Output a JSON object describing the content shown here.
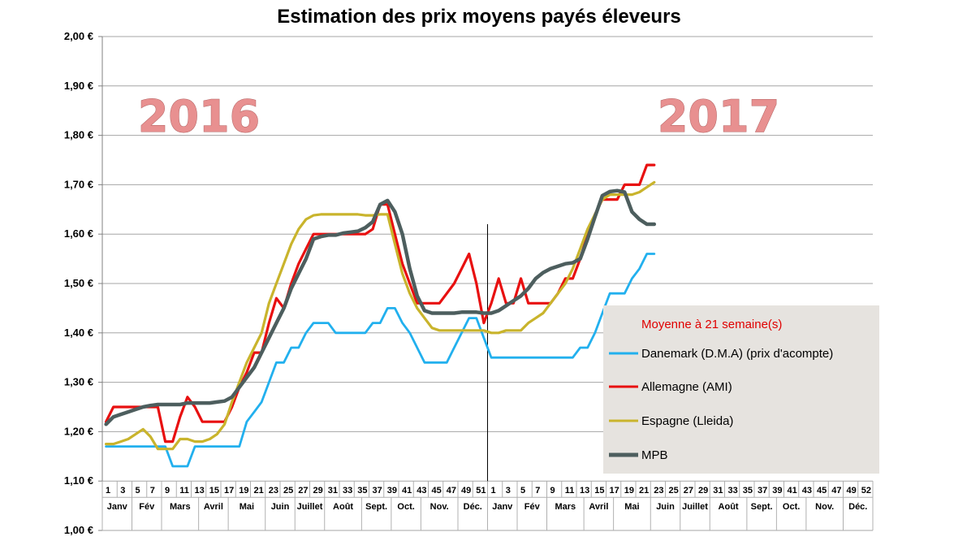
{
  "chart_data": {
    "type": "line",
    "title": "Estimation des prix moyens payés éleveurs",
    "ylim": [
      1.0,
      2.0
    ],
    "yticks": [
      1.0,
      1.1,
      1.2,
      1.3,
      1.4,
      1.5,
      1.6,
      1.7,
      1.8,
      1.9,
      2.0
    ],
    "ytick_labels": [
      "1,00 €",
      "1,10 €",
      "1,20 €",
      "1,30 €",
      "1,40 €",
      "1,50 €",
      "1,60 €",
      "1,70 €",
      "1,80 €",
      "1,90 €",
      "2,00 €"
    ],
    "xlabel": "",
    "ylabel": "",
    "grid": true,
    "week_labels_2016": [
      "1",
      "3",
      "5",
      "7",
      "9",
      "11",
      "13",
      "15",
      "17",
      "19",
      "21",
      "23",
      "25",
      "27",
      "29",
      "31",
      "33",
      "35",
      "37",
      "39",
      "41",
      "43",
      "45",
      "47",
      "49",
      "51"
    ],
    "week_labels_2017": [
      "1",
      "3",
      "5",
      "7",
      "9",
      "11",
      "13",
      "15",
      "17",
      "19",
      "21",
      "23",
      "25",
      "27",
      "29",
      "31",
      "33",
      "35",
      "37",
      "39",
      "41",
      "43",
      "45",
      "47",
      "49",
      "52"
    ],
    "months": [
      "Janv",
      "Fév",
      "Mars",
      "Avril",
      "Mai",
      "Juin",
      "Juillet",
      "Août",
      "Sept.",
      "Oct.",
      "Nov.",
      "Déc."
    ],
    "year_labels": [
      "2016",
      "2017"
    ],
    "legend": {
      "title": "Moyenne à  21 semaine(s)",
      "position": "bottom-right"
    },
    "series": [
      {
        "name": "Danemark (D.M.A) (prix d'acompte)",
        "color": "#22b0ee",
        "values": [
          1.17,
          1.17,
          1.17,
          1.17,
          1.17,
          1.17,
          1.17,
          1.17,
          1.17,
          1.13,
          1.13,
          1.13,
          1.17,
          1.17,
          1.17,
          1.17,
          1.17,
          1.17,
          1.17,
          1.22,
          1.24,
          1.26,
          1.3,
          1.34,
          1.34,
          1.37,
          1.37,
          1.4,
          1.42,
          1.42,
          1.42,
          1.4,
          1.4,
          1.4,
          1.4,
          1.4,
          1.42,
          1.42,
          1.45,
          1.45,
          1.42,
          1.4,
          1.37,
          1.34,
          1.34,
          1.34,
          1.34,
          1.37,
          1.4,
          1.43,
          1.43,
          1.39,
          1.35,
          1.35,
          1.35,
          1.35,
          1.35,
          1.35,
          1.35,
          1.35,
          1.35,
          1.35,
          1.35,
          1.35,
          1.37,
          1.37,
          1.4,
          1.44,
          1.48,
          1.48,
          1.48,
          1.51,
          1.53,
          1.56,
          1.56
        ]
      },
      {
        "name": "Allemagne (AMI)",
        "color": "#e81010",
        "values": [
          1.22,
          1.25,
          1.25,
          1.25,
          1.25,
          1.25,
          1.25,
          1.25,
          1.18,
          1.18,
          1.23,
          1.27,
          1.25,
          1.22,
          1.22,
          1.22,
          1.22,
          1.25,
          1.29,
          1.32,
          1.36,
          1.36,
          1.42,
          1.47,
          1.45,
          1.5,
          1.54,
          1.57,
          1.6,
          1.6,
          1.6,
          1.6,
          1.6,
          1.6,
          1.6,
          1.6,
          1.61,
          1.66,
          1.66,
          1.6,
          1.54,
          1.5,
          1.46,
          1.46,
          1.46,
          1.46,
          1.48,
          1.5,
          1.53,
          1.56,
          1.5,
          1.42,
          1.46,
          1.51,
          1.46,
          1.46,
          1.51,
          1.46,
          1.46,
          1.46,
          1.46,
          1.48,
          1.51,
          1.51,
          1.55,
          1.6,
          1.64,
          1.67,
          1.67,
          1.67,
          1.7,
          1.7,
          1.7,
          1.74,
          1.74
        ]
      },
      {
        "name": "Espagne (Lleida)",
        "color": "#c9b42c",
        "values": [
          1.175,
          1.175,
          1.18,
          1.185,
          1.195,
          1.205,
          1.19,
          1.165,
          1.165,
          1.165,
          1.185,
          1.185,
          1.18,
          1.18,
          1.185,
          1.195,
          1.215,
          1.26,
          1.3,
          1.34,
          1.37,
          1.4,
          1.46,
          1.5,
          1.54,
          1.58,
          1.61,
          1.63,
          1.638,
          1.64,
          1.64,
          1.64,
          1.64,
          1.64,
          1.64,
          1.638,
          1.638,
          1.64,
          1.64,
          1.58,
          1.52,
          1.48,
          1.45,
          1.43,
          1.41,
          1.405,
          1.405,
          1.405,
          1.405,
          1.405,
          1.405,
          1.405,
          1.4,
          1.4,
          1.405,
          1.405,
          1.405,
          1.42,
          1.43,
          1.44,
          1.46,
          1.48,
          1.5,
          1.53,
          1.57,
          1.61,
          1.64,
          1.67,
          1.68,
          1.68,
          1.68,
          1.68,
          1.685,
          1.695,
          1.705
        ]
      },
      {
        "name": "MPB",
        "color": "#4d5e5e",
        "values": [
          1.215,
          1.23,
          1.235,
          1.24,
          1.245,
          1.25,
          1.253,
          1.255,
          1.255,
          1.255,
          1.255,
          1.258,
          1.258,
          1.258,
          1.258,
          1.26,
          1.262,
          1.27,
          1.29,
          1.31,
          1.33,
          1.36,
          1.39,
          1.42,
          1.45,
          1.49,
          1.52,
          1.55,
          1.59,
          1.595,
          1.598,
          1.598,
          1.602,
          1.604,
          1.606,
          1.613,
          1.625,
          1.66,
          1.668,
          1.645,
          1.6,
          1.53,
          1.475,
          1.445,
          1.44,
          1.44,
          1.44,
          1.44,
          1.442,
          1.442,
          1.442,
          1.44,
          1.44,
          1.445,
          1.455,
          1.465,
          1.475,
          1.49,
          1.51,
          1.522,
          1.53,
          1.535,
          1.54,
          1.542,
          1.55,
          1.59,
          1.635,
          1.678,
          1.686,
          1.688,
          1.685,
          1.645,
          1.63,
          1.62,
          1.62
        ]
      }
    ]
  }
}
